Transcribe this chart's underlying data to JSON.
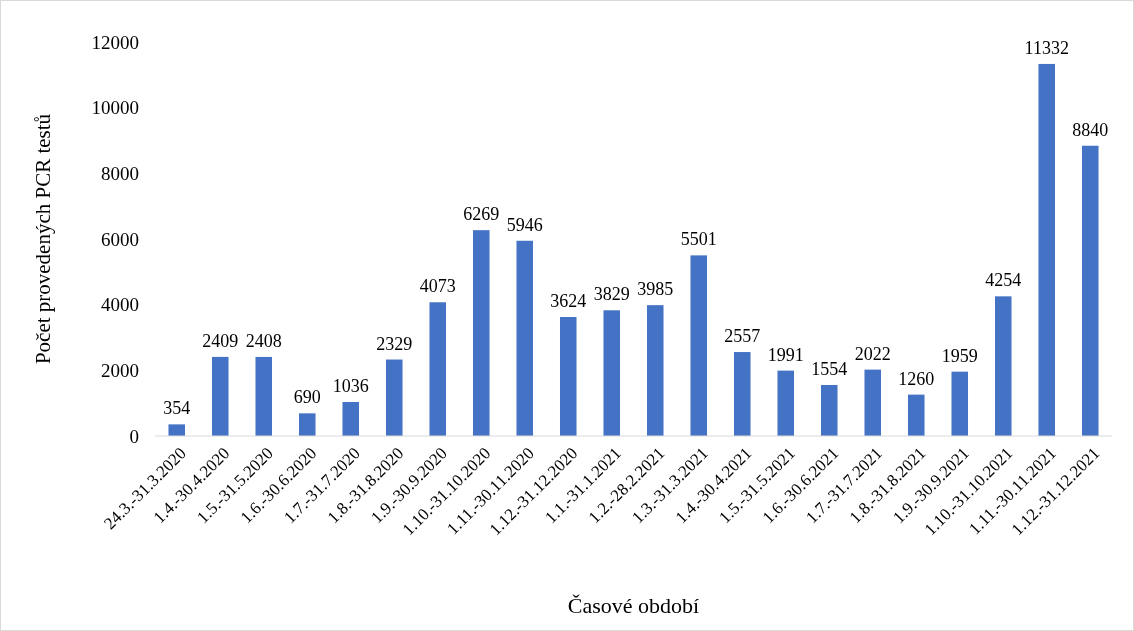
{
  "chart_data": {
    "type": "bar",
    "xlabel": "Časové období",
    "ylabel": "Počet provedených PCR testů",
    "categories": [
      "24.3.-31.3.2020",
      "1.4.-30.4.2020",
      "1.5.-31.5.2020",
      "1.6.-30.6.2020",
      "1.7.-31.7.2020",
      "1.8.-31.8.2020",
      "1.9.-30.9.2020",
      "1.10.-31.10.2020",
      "1.11.-30.11.2020",
      "1.12.-31.12.2020",
      "1.1.-31.1.2021",
      "1.2.-28.2.2021",
      "1.3.-31.3.2021",
      "1.4.-30.4.2021",
      "1.5.-31.5.2021",
      "1.6.-30.6.2021",
      "1.7.-31.7.2021",
      "1.8.-31.8.2021",
      "1.9.-30.9.2021",
      "1.10.-31.10.2021",
      "1.11.-30.11.2021",
      "1.12.-31.12.2021"
    ],
    "values": [
      354,
      2409,
      2408,
      690,
      1036,
      2329,
      4073,
      6269,
      5946,
      3624,
      3829,
      3985,
      5501,
      2557,
      1991,
      1554,
      2022,
      1260,
      1959,
      4254,
      11332,
      8840
    ],
    "color": "#4472c4",
    "ylim": [
      0,
      12000
    ],
    "yticks": [
      0,
      2000,
      4000,
      6000,
      8000,
      10000,
      12000
    ],
    "data_labels": true
  }
}
